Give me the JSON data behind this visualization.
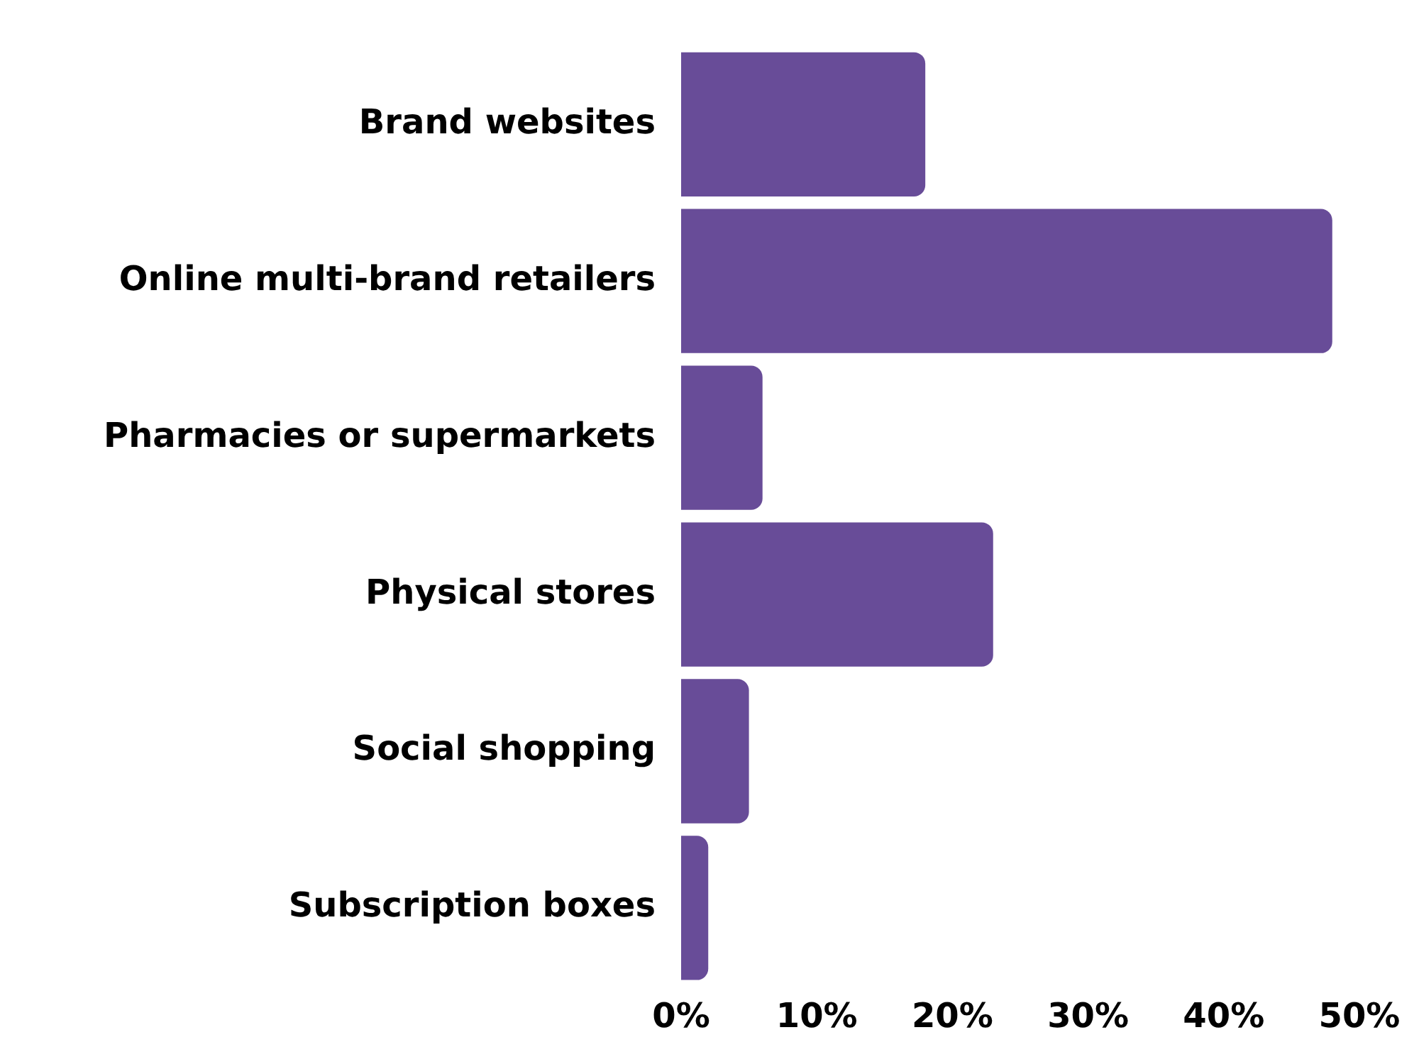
{
  "chart_data": {
    "type": "bar",
    "orientation": "horizontal",
    "categories": [
      "Brand websites",
      "Online multi-brand retailers",
      "Pharmacies or supermarkets",
      "Physical stores",
      "Social shopping",
      "Subscription boxes"
    ],
    "values": [
      18,
      48,
      6,
      23,
      5,
      2
    ],
    "color": "#684c98",
    "xlim": [
      0,
      50
    ],
    "xticks": [
      {
        "value": 0,
        "label": "0%"
      },
      {
        "value": 10,
        "label": "10%"
      },
      {
        "value": 20,
        "label": "20%"
      },
      {
        "value": 30,
        "label": "30%"
      },
      {
        "value": 40,
        "label": "40%"
      },
      {
        "value": 50,
        "label": "50%"
      }
    ],
    "grid": false,
    "legend": false
  }
}
